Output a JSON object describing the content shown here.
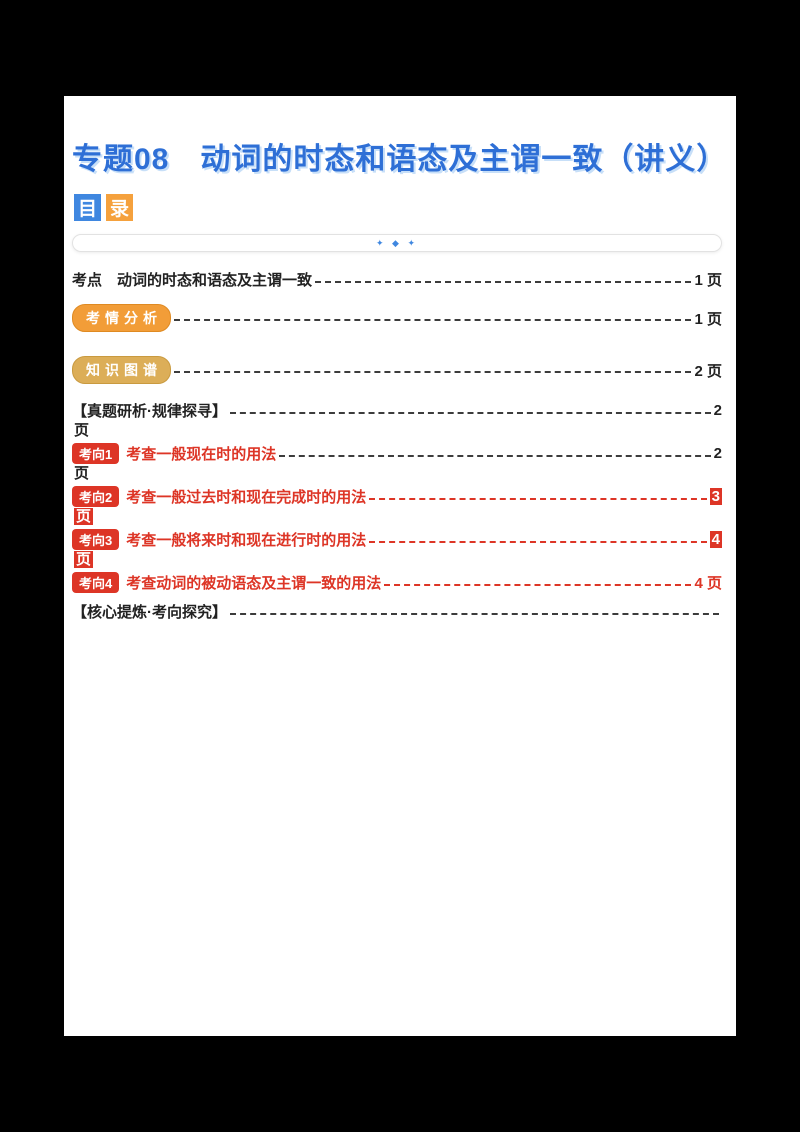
{
  "doc": {
    "title": "专题08　动词的时态和语态及主谓一致（讲义）",
    "catalog_char_1": "目",
    "catalog_char_2": "录",
    "divider_decoration": "✦ ◆ ✦"
  },
  "colors": {
    "title_blue": "#2e6fd6",
    "badge_orange": "#f29d38",
    "badge_tan": "#dcae58",
    "accent_red": "#dd3526",
    "catalog_blue": "#3f87e0",
    "catalog_orange": "#f5a13d"
  },
  "toc": {
    "rows": [
      {
        "label": "考点　动词的时态和语态及主谓一致",
        "page": "1 页"
      },
      {
        "badge": "考情分析",
        "page": "1 页"
      },
      {
        "badge": "知识图谱",
        "page": "2 页"
      },
      {
        "label": "【真题研析·规律探寻】",
        "page": "2",
        "wrap": "页"
      },
      {
        "badge": "考向1",
        "label": "考查一般现在时的用法",
        "page": "2",
        "wrap": "页"
      },
      {
        "badge": "考向2",
        "label": "考查一般过去时和现在完成时的用法",
        "page": "3",
        "wrap": "页"
      },
      {
        "badge": "考向3",
        "label": "考查一般将来时和现在进行时的用法",
        "page": "4",
        "wrap": "页"
      },
      {
        "badge": "考向4",
        "label": "考查动词的被动语态及主谓一致的用法",
        "page": "4 页"
      },
      {
        "label": "【核心提炼·考向探究】",
        "page": ""
      }
    ]
  }
}
